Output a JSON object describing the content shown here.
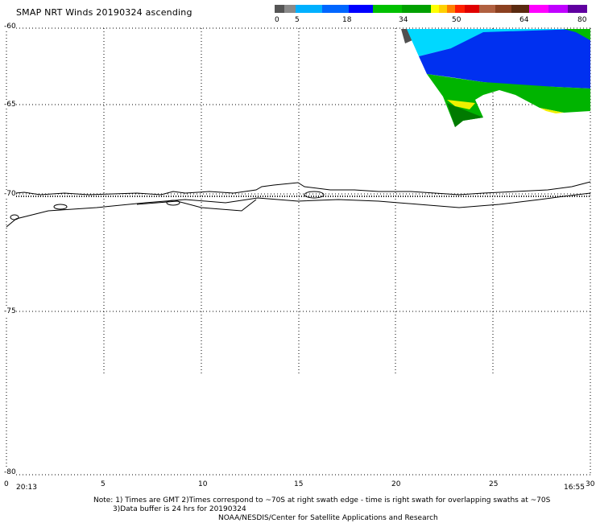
{
  "title": "SMAP NRT Winds 20190324 ascending",
  "colorbar": {
    "labels": [
      "0",
      "5",
      "18",
      "34",
      "50",
      "64",
      "80"
    ],
    "segments": [
      "#555555",
      "#8a8a8a",
      "#00b0ff",
      "#0066ff",
      "#0000ff",
      "#00c000",
      "#00a000",
      "#ffff00",
      "#ffd000",
      "#ff8000",
      "#ff2000",
      "#e00000",
      "#b06040",
      "#8b4020",
      "#5a2a10",
      "#ff00ff",
      "#c000ff",
      "#6000a0"
    ]
  },
  "lat_labels": [
    "-60",
    "-65",
    "-70",
    "-75",
    "-80"
  ],
  "lon_labels": [
    "0",
    "5",
    "10",
    "15",
    "20",
    "25",
    "30"
  ],
  "time_left": "20:13",
  "time_right": "16:55",
  "notes": {
    "line1": "Note: 1) Times are GMT 2)Times correspond to ~70S at right swath edge - time is right swath for overlapping swaths at ~70S",
    "line2": "3)Data buffer is 24 hrs for 20190324",
    "line3": "NOAA/NESDIS/Center for Satellite Applications and Research"
  },
  "legend_colors": {
    "swath_calm": "#505050",
    "swath_light": "#00e0ff",
    "swath_mid": "#0040f0",
    "swath_green": "#00bb00",
    "swath_yellow": "#f0f000"
  }
}
